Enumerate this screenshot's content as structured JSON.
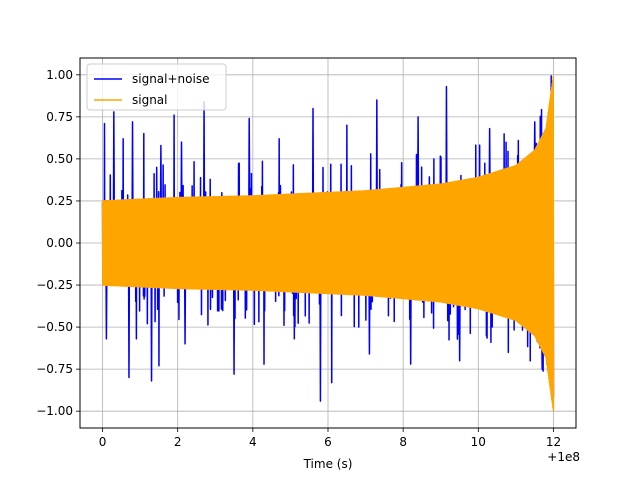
{
  "chart_data": {
    "type": "line",
    "title": "",
    "xlabel": "Time (s)",
    "ylabel": "",
    "x_offset_label": "+1e8",
    "xlim": [
      -0.6,
      12.6
    ],
    "ylim": [
      -1.1,
      1.1
    ],
    "x_ticks": [
      0,
      2,
      4,
      6,
      8,
      10,
      12
    ],
    "x_tick_labels": [
      "0",
      "2",
      "4",
      "6",
      "8",
      "10",
      "12"
    ],
    "y_ticks": [
      -1.0,
      -0.75,
      -0.5,
      -0.25,
      0.0,
      0.25,
      0.5,
      0.75,
      1.0
    ],
    "y_tick_labels": [
      "−1.00",
      "−0.75",
      "−0.50",
      "−0.25",
      "0.00",
      "0.25",
      "0.50",
      "0.75",
      "1.00"
    ],
    "grid": true,
    "legend_placement": "top-left",
    "series": [
      {
        "name": "signal+noise",
        "color": "#0000ff",
        "envelope_x": [
          0,
          1,
          2,
          3,
          4,
          5,
          6,
          7,
          8,
          9,
          10,
          11,
          11.5,
          11.8,
          12
        ],
        "envelope_y": [
          0.25,
          0.26,
          0.27,
          0.275,
          0.28,
          0.29,
          0.3,
          0.31,
          0.33,
          0.35,
          0.39,
          0.46,
          0.55,
          0.68,
          1.0
        ],
        "peaks": [
          {
            "x": 0.05,
            "y": 0.71
          },
          {
            "x": 0.1,
            "y": -0.57
          },
          {
            "x": 0.3,
            "y": 0.78
          },
          {
            "x": 0.55,
            "y": 0.62
          },
          {
            "x": 0.7,
            "y": -0.8
          },
          {
            "x": 0.8,
            "y": 0.72
          },
          {
            "x": 0.9,
            "y": -0.57
          },
          {
            "x": 1.1,
            "y": 0.65
          },
          {
            "x": 1.3,
            "y": -0.82
          },
          {
            "x": 1.5,
            "y": -0.73
          },
          {
            "x": 1.55,
            "y": 0.58
          },
          {
            "x": 1.9,
            "y": 0.76
          },
          {
            "x": 2.1,
            "y": 0.6
          },
          {
            "x": 2.2,
            "y": -0.6
          },
          {
            "x": 2.7,
            "y": 0.84
          },
          {
            "x": 3.5,
            "y": -0.78
          },
          {
            "x": 3.9,
            "y": 0.74
          },
          {
            "x": 4.3,
            "y": -0.72
          },
          {
            "x": 4.7,
            "y": 0.62
          },
          {
            "x": 5.1,
            "y": -0.57
          },
          {
            "x": 5.6,
            "y": 0.8
          },
          {
            "x": 5.8,
            "y": -0.94
          },
          {
            "x": 6.1,
            "y": -0.83
          },
          {
            "x": 6.5,
            "y": 0.7
          },
          {
            "x": 7.1,
            "y": -0.66
          },
          {
            "x": 7.3,
            "y": 0.85
          },
          {
            "x": 8.2,
            "y": -0.72
          },
          {
            "x": 8.4,
            "y": 0.75
          },
          {
            "x": 9.15,
            "y": 0.93
          },
          {
            "x": 9.5,
            "y": -0.7
          },
          {
            "x": 10.3,
            "y": 0.68
          },
          {
            "x": 10.8,
            "y": -0.65
          },
          {
            "x": 11.5,
            "y": 0.72
          },
          {
            "x": 11.7,
            "y": -0.75
          }
        ]
      },
      {
        "name": "signal",
        "color": "#ffa500",
        "envelope_x": [
          0,
          1,
          2,
          3,
          4,
          5,
          6,
          7,
          8,
          9,
          10,
          11,
          11.5,
          11.8,
          12
        ],
        "envelope_y": [
          0.25,
          0.26,
          0.27,
          0.275,
          0.28,
          0.29,
          0.3,
          0.31,
          0.33,
          0.35,
          0.39,
          0.46,
          0.55,
          0.68,
          1.0
        ]
      }
    ]
  }
}
